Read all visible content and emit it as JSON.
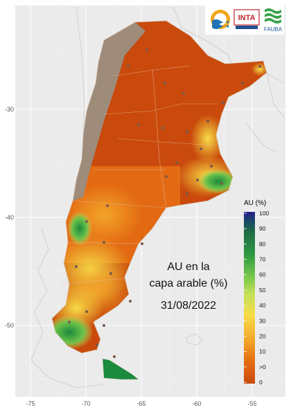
{
  "map": {
    "title_line1": "AU en la",
    "title_line2": "capa arable (%)",
    "date": "31/08/2022",
    "x_ticks": [
      "-75",
      "-70",
      "-65",
      "-60",
      "-55"
    ],
    "y_ticks": [
      "-30",
      "-40",
      "-50"
    ],
    "region": "Argentina"
  },
  "legend": {
    "title": "AU (%)",
    "labels": [
      "100",
      "90",
      "80",
      "70",
      "60",
      "50",
      "40",
      "30",
      "20",
      "10",
      ">0",
      "0"
    ],
    "colors": {
      "dry": "#c94a0c",
      "low": "#e8851a",
      "mid": "#f6d23a",
      "moist": "#8fd14f",
      "wet": "#1b8a3c",
      "saturated": "#2b1a8f",
      "no_data": "#9e8b7a"
    }
  },
  "logos": {
    "inta_text": "INTA",
    "fauba_text": "FAUBA"
  }
}
